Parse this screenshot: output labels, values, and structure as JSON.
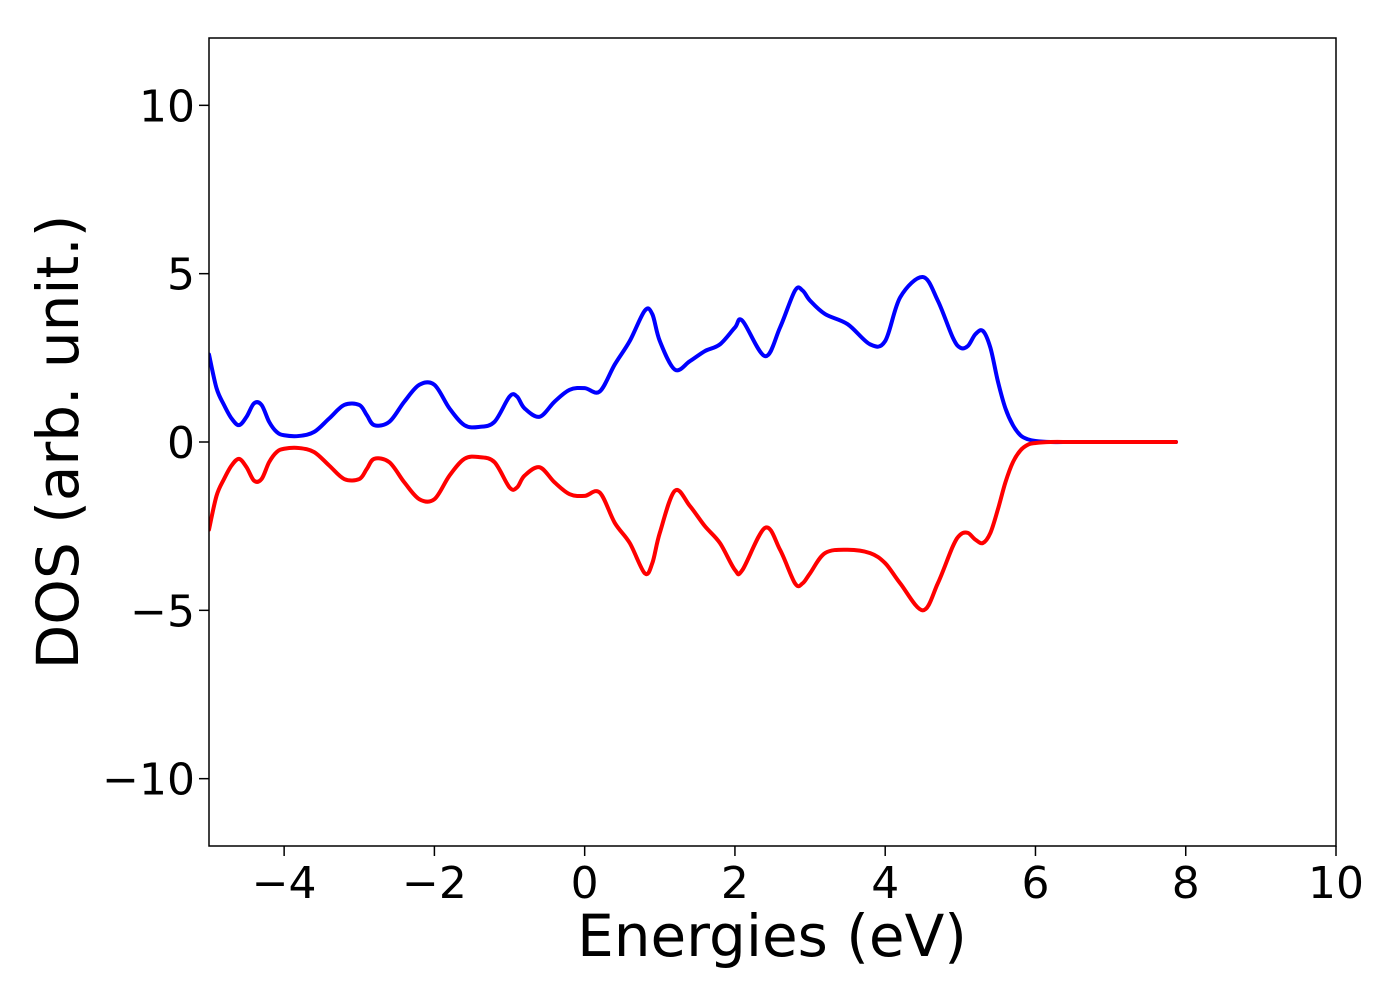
{
  "chart_data": {
    "type": "line",
    "title": "",
    "xlabel": "Energies (eV)",
    "ylabel": "DOS (arb. unit.)",
    "xlim": [
      -5,
      10
    ],
    "ylim": [
      -12,
      12
    ],
    "grid": false,
    "x_ticks": [
      -4,
      -2,
      0,
      2,
      4,
      6,
      8,
      10
    ],
    "x_tick_labels": [
      "−4",
      "−2",
      "0",
      "2",
      "4",
      "6",
      "8",
      "10"
    ],
    "y_ticks": [
      -10,
      -5,
      0,
      5,
      10
    ],
    "y_tick_labels": [
      "−10",
      "−5",
      "0",
      "5",
      "10"
    ],
    "series": [
      {
        "color": "#0000ff",
        "x": [
          -5.0,
          -4.9,
          -4.8,
          -4.7,
          -4.6,
          -4.5,
          -4.4,
          -4.3,
          -4.2,
          -4.1,
          -4.0,
          -3.8,
          -3.6,
          -3.4,
          -3.2,
          -3.0,
          -2.9,
          -2.8,
          -2.6,
          -2.4,
          -2.2,
          -2.0,
          -1.8,
          -1.6,
          -1.4,
          -1.2,
          -1.0,
          -0.9,
          -0.8,
          -0.6,
          -0.4,
          -0.2,
          0.0,
          0.2,
          0.4,
          0.6,
          0.8,
          0.9,
          1.0,
          1.2,
          1.4,
          1.6,
          1.8,
          2.0,
          2.1,
          2.4,
          2.6,
          2.8,
          2.9,
          3.0,
          3.2,
          3.5,
          3.8,
          4.0,
          4.2,
          4.5,
          4.7,
          4.9,
          5.0,
          5.1,
          5.2,
          5.3,
          5.4,
          5.5,
          5.6,
          5.7,
          5.8,
          5.9,
          6.0,
          6.2,
          6.5,
          7.0,
          7.5,
          7.87
        ],
        "y": [
          2.6,
          1.6,
          1.1,
          0.7,
          0.5,
          0.75,
          1.15,
          1.1,
          0.6,
          0.3,
          0.2,
          0.18,
          0.3,
          0.7,
          1.1,
          1.1,
          0.8,
          0.5,
          0.6,
          1.2,
          1.7,
          1.7,
          1.0,
          0.5,
          0.45,
          0.6,
          1.35,
          1.35,
          1.0,
          0.75,
          1.2,
          1.55,
          1.6,
          1.5,
          2.3,
          3.0,
          3.9,
          3.8,
          3.0,
          2.15,
          2.4,
          2.7,
          2.9,
          3.4,
          3.6,
          2.55,
          3.4,
          4.5,
          4.5,
          4.2,
          3.8,
          3.5,
          2.9,
          3.0,
          4.3,
          4.9,
          4.2,
          3.1,
          2.8,
          2.85,
          3.2,
          3.3,
          2.8,
          1.8,
          1.0,
          0.5,
          0.2,
          0.08,
          0.03,
          0.0,
          0.0,
          0.0,
          0.0,
          0.0
        ]
      },
      {
        "color": "#ff0000",
        "x": [
          -5.0,
          -4.9,
          -4.8,
          -4.7,
          -4.6,
          -4.5,
          -4.4,
          -4.3,
          -4.2,
          -4.1,
          -4.0,
          -3.8,
          -3.6,
          -3.4,
          -3.2,
          -3.0,
          -2.9,
          -2.8,
          -2.6,
          -2.4,
          -2.2,
          -2.0,
          -1.8,
          -1.6,
          -1.4,
          -1.2,
          -1.0,
          -0.9,
          -0.8,
          -0.6,
          -0.4,
          -0.2,
          0.0,
          0.2,
          0.4,
          0.6,
          0.8,
          0.9,
          1.0,
          1.2,
          1.4,
          1.6,
          1.8,
          2.0,
          2.1,
          2.4,
          2.6,
          2.8,
          2.9,
          3.0,
          3.2,
          3.5,
          3.8,
          4.0,
          4.2,
          4.5,
          4.7,
          4.9,
          5.0,
          5.1,
          5.2,
          5.3,
          5.4,
          5.5,
          5.6,
          5.7,
          5.8,
          5.9,
          6.0,
          6.2,
          6.5,
          7.0,
          7.5,
          7.87
        ],
        "y": [
          -2.6,
          -1.6,
          -1.1,
          -0.7,
          -0.5,
          -0.75,
          -1.15,
          -1.1,
          -0.6,
          -0.3,
          -0.2,
          -0.18,
          -0.3,
          -0.7,
          -1.1,
          -1.1,
          -0.8,
          -0.5,
          -0.6,
          -1.2,
          -1.7,
          -1.7,
          -1.0,
          -0.5,
          -0.45,
          -0.6,
          -1.35,
          -1.35,
          -1.0,
          -0.75,
          -1.2,
          -1.55,
          -1.6,
          -1.5,
          -2.4,
          -3.0,
          -3.9,
          -3.6,
          -2.7,
          -1.45,
          -1.9,
          -2.5,
          -3.0,
          -3.8,
          -3.8,
          -2.55,
          -3.2,
          -4.2,
          -4.2,
          -3.9,
          -3.3,
          -3.2,
          -3.3,
          -3.6,
          -4.2,
          -5.0,
          -4.2,
          -3.1,
          -2.75,
          -2.7,
          -2.9,
          -3.0,
          -2.7,
          -2.0,
          -1.2,
          -0.6,
          -0.25,
          -0.08,
          -0.03,
          0.0,
          0.0,
          0.0,
          0.0,
          0.0
        ]
      }
    ]
  }
}
